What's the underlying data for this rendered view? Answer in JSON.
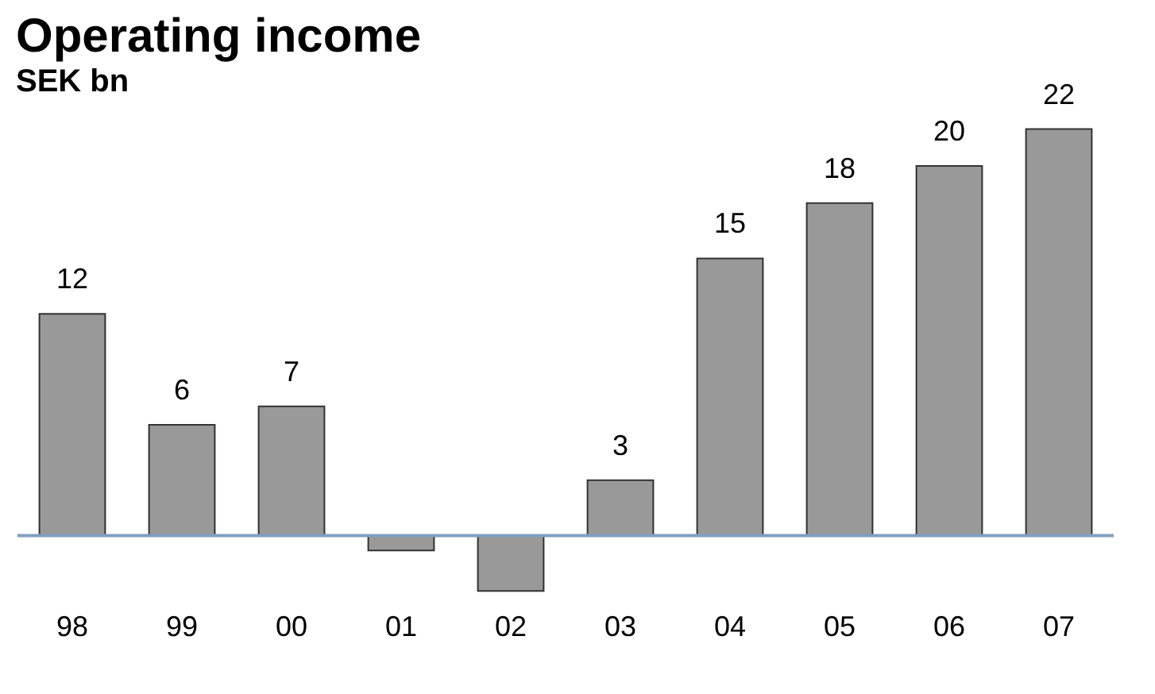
{
  "chart_data": {
    "type": "bar",
    "title": "Operating income",
    "subtitle": "SEK bn",
    "categories": [
      "98",
      "99",
      "00",
      "01",
      "02",
      "03",
      "04",
      "05",
      "06",
      "07"
    ],
    "values": [
      12,
      6,
      7,
      -0.8,
      -3,
      3,
      15,
      18,
      20,
      22
    ],
    "value_labels": [
      "12",
      "6",
      "7",
      null,
      null,
      "3",
      "15",
      "18",
      "20",
      "22"
    ],
    "color": "#999999",
    "grid": false,
    "ref_lines": [
      {
        "axis": "y",
        "value": 0,
        "color": "#7f9fbf"
      }
    ]
  }
}
